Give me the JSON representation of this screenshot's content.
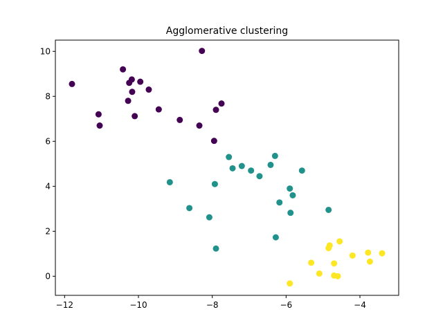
{
  "chart_data": {
    "type": "scatter",
    "title": "Agglomerative clustering",
    "xlabel": "",
    "ylabel": "",
    "xlim": [
      -12.25,
      -2.95
    ],
    "ylim": [
      -0.85,
      10.5
    ],
    "x_ticks": [
      -12,
      -10,
      -8,
      -6,
      -4
    ],
    "y_ticks": [
      0,
      2,
      4,
      6,
      8,
      10
    ],
    "grid": false,
    "legend": "none",
    "cluster_colors": [
      "#440154",
      "#21918c",
      "#fde725"
    ],
    "series": [
      {
        "points": [
          {
            "x": -11.8,
            "y": 8.55
          },
          {
            "x": -11.08,
            "y": 7.2
          },
          {
            "x": -11.05,
            "y": 6.7
          },
          {
            "x": -10.42,
            "y": 9.2
          },
          {
            "x": -10.28,
            "y": 7.8
          },
          {
            "x": -10.25,
            "y": 8.6
          },
          {
            "x": -10.18,
            "y": 8.75
          },
          {
            "x": -10.17,
            "y": 8.2
          },
          {
            "x": -10.1,
            "y": 7.12
          },
          {
            "x": -9.95,
            "y": 8.65
          },
          {
            "x": -9.72,
            "y": 8.3
          },
          {
            "x": -9.45,
            "y": 7.42
          },
          {
            "x": -8.88,
            "y": 6.95
          },
          {
            "x": -8.35,
            "y": 6.7
          },
          {
            "x": -8.28,
            "y": 10.02
          },
          {
            "x": -7.95,
            "y": 6.02
          },
          {
            "x": -7.9,
            "y": 7.4
          },
          {
            "x": -7.75,
            "y": 7.68
          }
        ]
      },
      {
        "points": [
          {
            "x": -9.15,
            "y": 4.18
          },
          {
            "x": -8.62,
            "y": 3.03
          },
          {
            "x": -8.08,
            "y": 2.62
          },
          {
            "x": -7.93,
            "y": 4.1
          },
          {
            "x": -7.9,
            "y": 1.23
          },
          {
            "x": -7.55,
            "y": 5.3
          },
          {
            "x": -7.45,
            "y": 4.8
          },
          {
            "x": -7.2,
            "y": 4.9
          },
          {
            "x": -6.95,
            "y": 4.7
          },
          {
            "x": -6.72,
            "y": 4.45
          },
          {
            "x": -6.42,
            "y": 4.95
          },
          {
            "x": -6.3,
            "y": 5.35
          },
          {
            "x": -6.28,
            "y": 1.73
          },
          {
            "x": -6.18,
            "y": 3.28
          },
          {
            "x": -5.9,
            "y": 3.9
          },
          {
            "x": -5.88,
            "y": 2.82
          },
          {
            "x": -5.82,
            "y": 3.6
          },
          {
            "x": -5.57,
            "y": 4.7
          },
          {
            "x": -4.85,
            "y": 2.95
          }
        ]
      },
      {
        "points": [
          {
            "x": -5.9,
            "y": -0.32
          },
          {
            "x": -5.32,
            "y": 0.6
          },
          {
            "x": -5.1,
            "y": 0.12
          },
          {
            "x": -4.85,
            "y": 1.25
          },
          {
            "x": -4.82,
            "y": 1.37
          },
          {
            "x": -4.7,
            "y": 0.57
          },
          {
            "x": -4.7,
            "y": 0.03
          },
          {
            "x": -4.6,
            "y": 0.0
          },
          {
            "x": -4.55,
            "y": 1.55
          },
          {
            "x": -4.2,
            "y": 0.92
          },
          {
            "x": -3.78,
            "y": 1.05
          },
          {
            "x": -3.73,
            "y": 0.65
          },
          {
            "x": -3.4,
            "y": 1.02
          }
        ]
      }
    ]
  }
}
